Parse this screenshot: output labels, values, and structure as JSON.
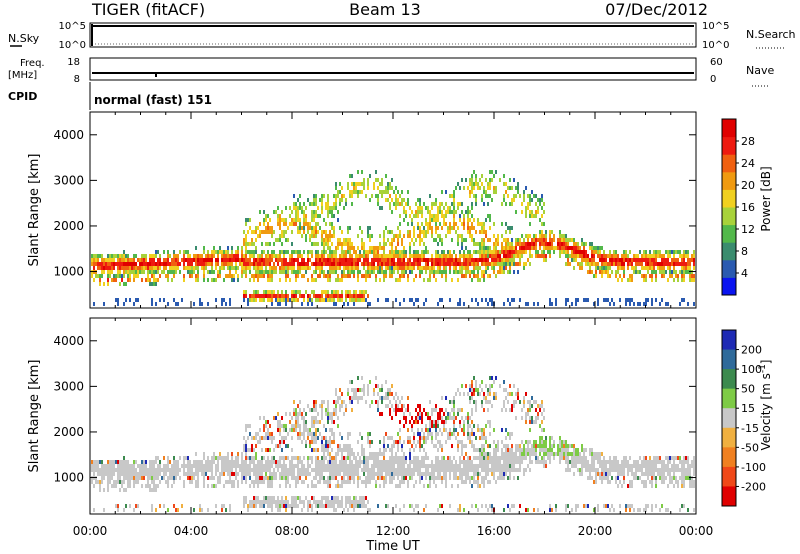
{
  "header": {
    "radar": "TIGER (fitACF)",
    "beam": "Beam 13",
    "date": "07/Dec/2012"
  },
  "top_panels": {
    "nsky": {
      "label": "N.Sky",
      "ticks": [
        "10^5",
        "10^0"
      ]
    },
    "nsearch": {
      "label": "N.Search",
      "ticks": [
        "10^5",
        "10^0"
      ]
    },
    "freq": {
      "label": "Freq.",
      "unit": "[MHz]",
      "ticks": [
        "18",
        "8"
      ]
    },
    "nave": {
      "label": "Nave",
      "ticks": [
        "60",
        "0"
      ]
    },
    "cpid": {
      "label": "CPID",
      "value": "normal (fast) 151"
    }
  },
  "chart_data": [
    {
      "type": "heatmap",
      "name": "power",
      "ylabel": "Slant Range [km]",
      "xlabel": "",
      "xlim": [
        0,
        24
      ],
      "ylim": [
        200,
        4500
      ],
      "yticks": [
        1000,
        2000,
        3000,
        4000
      ],
      "colorbar": {
        "label": "Power [dB]",
        "ticks": [
          "4",
          "8",
          "12",
          "16",
          "20",
          "24",
          "28"
        ],
        "colors": [
          "#0a14f0",
          "#2a5ab0",
          "#3a8c6e",
          "#52b84a",
          "#a8d23a",
          "#f0d020",
          "#f09a10",
          "#f06010",
          "#ee1a10",
          "#e00000"
        ]
      }
    },
    {
      "type": "heatmap",
      "name": "velocity",
      "ylabel": "Slant Range [km]",
      "xlabel": "Time UT",
      "xlim": [
        0,
        24
      ],
      "ylim": [
        200,
        4500
      ],
      "yticks": [
        1000,
        2000,
        3000,
        4000
      ],
      "xticks": [
        "00:00",
        "04:00",
        "08:00",
        "12:00",
        "16:00",
        "20:00",
        "00:00"
      ],
      "colorbar": {
        "label": "Velocity [m s^-1]",
        "ticks": [
          "200",
          "100",
          "50",
          "15",
          "-15",
          "-50",
          "-100",
          "-200"
        ],
        "colors": [
          "#1e2ab4",
          "#2f6a9a",
          "#3c8a4e",
          "#7ecb46",
          "#c8c8c8",
          "#f0b040",
          "#f08020",
          "#f04818",
          "#e00000"
        ]
      }
    }
  ]
}
